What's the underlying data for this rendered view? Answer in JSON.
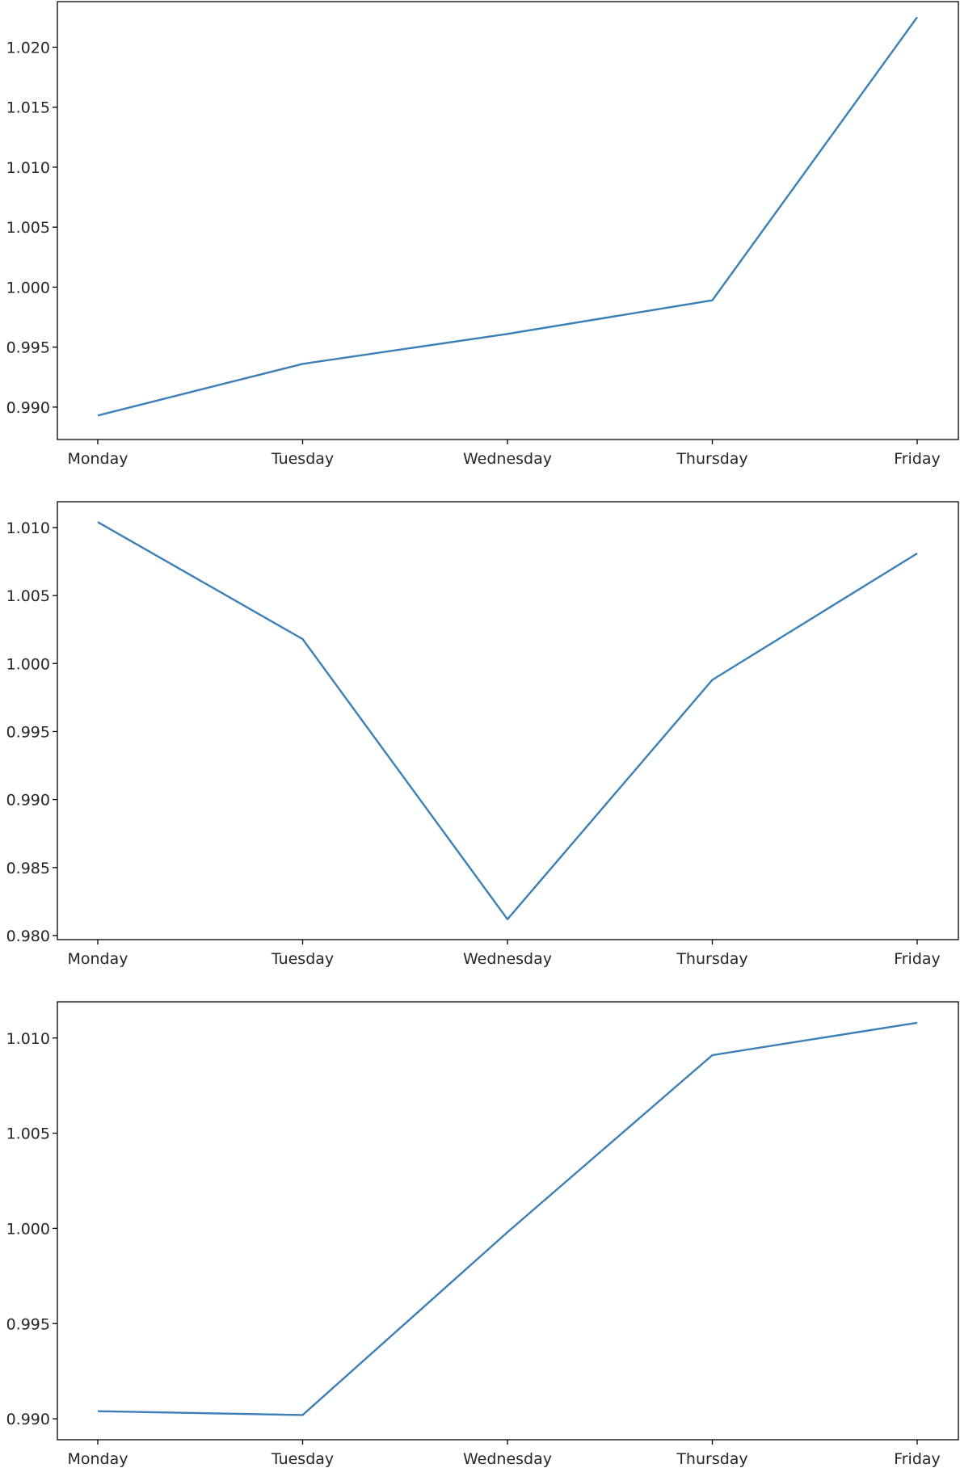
{
  "line_color": "#3a7fb8",
  "chart_data": [
    {
      "type": "line",
      "categories": [
        "Monday",
        "Tuesday",
        "Wednesday",
        "Thursday",
        "Friday"
      ],
      "values": [
        0.9893,
        0.9936,
        0.9961,
        0.9989,
        1.0225
      ],
      "ylim": [
        0.9873,
        1.0238
      ],
      "yticks": [
        0.99,
        0.995,
        1.0,
        1.005,
        1.01,
        1.015,
        1.02
      ],
      "ytick_labels": [
        "0.990",
        "0.995",
        "1.000",
        "1.005",
        "1.010",
        "1.015",
        "1.020"
      ],
      "grid": false
    },
    {
      "type": "line",
      "categories": [
        "Monday",
        "Tuesday",
        "Wednesday",
        "Thursday",
        "Friday"
      ],
      "values": [
        1.0104,
        1.0018,
        0.9812,
        0.9988,
        1.0081
      ],
      "ylim": [
        0.9797,
        1.0119
      ],
      "yticks": [
        0.98,
        0.985,
        0.99,
        0.995,
        1.0,
        1.005,
        1.01
      ],
      "ytick_labels": [
        "0.980",
        "0.985",
        "0.990",
        "0.995",
        "1.000",
        "1.005",
        "1.010"
      ],
      "grid": false
    },
    {
      "type": "line",
      "categories": [
        "Monday",
        "Tuesday",
        "Wednesday",
        "Thursday",
        "Friday"
      ],
      "values": [
        0.9904,
        0.9902,
        0.9998,
        1.0091,
        1.0108
      ],
      "ylim": [
        0.9889,
        1.0119
      ],
      "yticks": [
        0.99,
        0.995,
        1.0,
        1.005,
        1.01
      ],
      "ytick_labels": [
        "0.990",
        "0.995",
        "1.000",
        "1.005",
        "1.010"
      ],
      "grid": false
    }
  ]
}
